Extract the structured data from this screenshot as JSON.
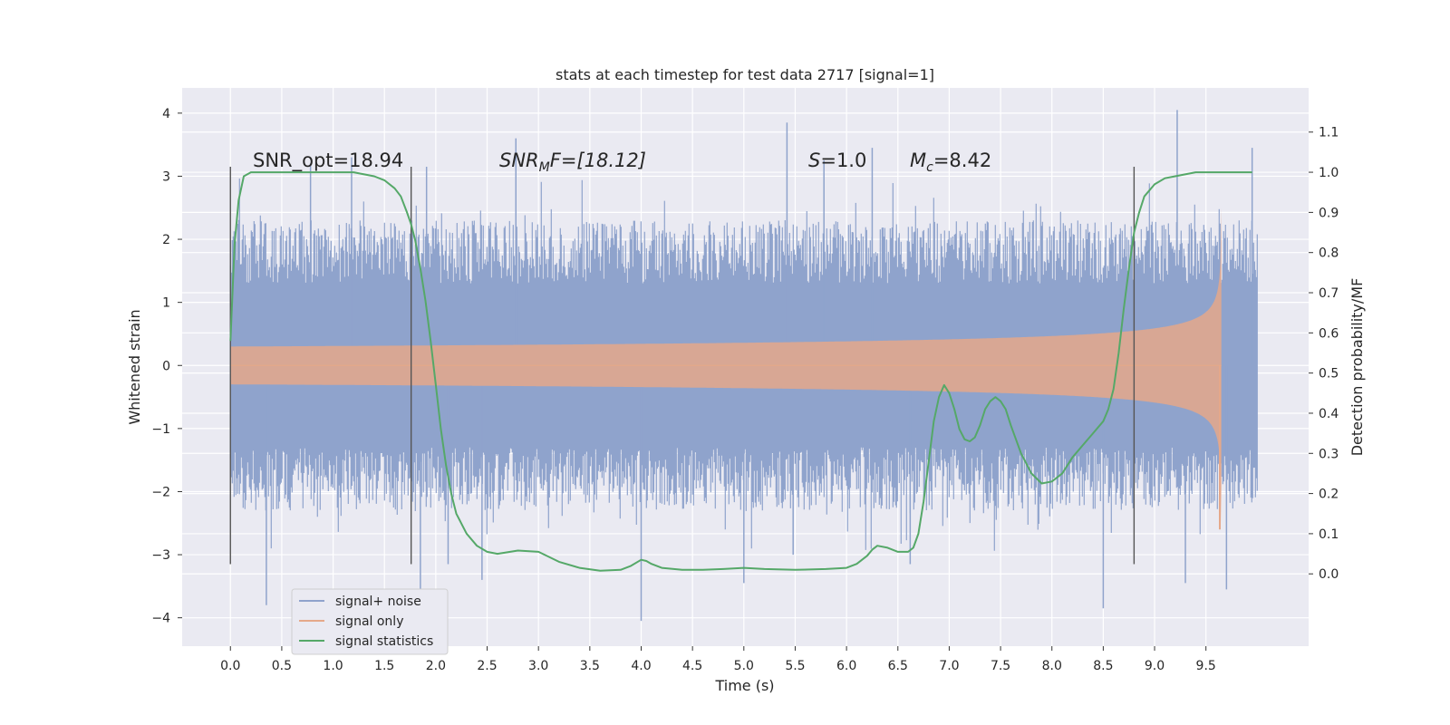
{
  "chart_data": {
    "type": "line",
    "title": "stats at each timestep for test data 2717 [signal=1]",
    "xlabel": "Time (s)",
    "ylabel": "Whitened strain",
    "y2label": "Detection probability/MF",
    "xlim": [
      -0.47,
      10.5
    ],
    "ylim": [
      -4.45,
      4.4
    ],
    "y2lim": [
      -0.18,
      1.21
    ],
    "x_ticks": [
      "0.0",
      "0.5",
      "1.0",
      "1.5",
      "2.0",
      "2.5",
      "3.0",
      "3.5",
      "4.0",
      "4.5",
      "5.0",
      "5.5",
      "6.0",
      "6.5",
      "7.0",
      "7.5",
      "8.0",
      "8.5",
      "9.0",
      "9.5"
    ],
    "y_ticks": [
      "4",
      "3",
      "2",
      "1",
      "0",
      "−1",
      "−2",
      "−3",
      "−4"
    ],
    "y2_ticks": [
      "1.1",
      "1.0",
      "0.9",
      "0.8",
      "0.7",
      "0.6",
      "0.5",
      "0.4",
      "0.3",
      "0.2",
      "0.1",
      "0.0"
    ],
    "grid": true,
    "legend_position": "bottom-left",
    "annotations": {
      "snr_opt": "SNR_opt=18.94",
      "snr_mf_main": "SNR",
      "snr_mf_sub": "M",
      "snr_mf_rest": "F=[18.12]",
      "s_main": "S",
      "s_rest": "=1.0",
      "mc_main": "M",
      "mc_sub": "c",
      "mc_rest": "=8.42"
    },
    "vlines": [
      0.0,
      1.76,
      8.8
    ],
    "vline_range": [
      -3.15,
      3.15
    ],
    "series": [
      {
        "name": "signal+ noise",
        "color": "#8fa3cc",
        "x_range": [
          0.0,
          10.0
        ],
        "band_core": 1.3,
        "band_typical": 2.3,
        "peaks": [
          {
            "x": 0.35,
            "y": -3.8
          },
          {
            "x": 0.78,
            "y": 3.2
          },
          {
            "x": 1.18,
            "y": 3.3
          },
          {
            "x": 1.85,
            "y": -3.55
          },
          {
            "x": 1.91,
            "y": 3.15
          },
          {
            "x": 2.12,
            "y": -3.15
          },
          {
            "x": 2.45,
            "y": -3.4
          },
          {
            "x": 2.78,
            "y": 3.6
          },
          {
            "x": 4.0,
            "y": -4.05
          },
          {
            "x": 5.0,
            "y": -3.45
          },
          {
            "x": 5.42,
            "y": 3.85
          },
          {
            "x": 5.48,
            "y": -3.0
          },
          {
            "x": 5.78,
            "y": 3.25
          },
          {
            "x": 6.25,
            "y": 3.45
          },
          {
            "x": 6.62,
            "y": -3.15
          },
          {
            "x": 8.5,
            "y": -3.85
          },
          {
            "x": 9.22,
            "y": 4.05
          },
          {
            "x": 9.3,
            "y": -3.45
          },
          {
            "x": 9.7,
            "y": -3.55
          },
          {
            "x": 9.95,
            "y": 3.45
          }
        ]
      },
      {
        "name": "signal only",
        "color": "#e5a88a",
        "chirp_end": 9.65,
        "amplitude_end": 2.5
      },
      {
        "name": "signal statistics",
        "color": "#55a868",
        "axis": "right",
        "x": [
          0.0,
          0.04,
          0.08,
          0.13,
          0.2,
          0.3,
          0.5,
          1.0,
          1.2,
          1.4,
          1.5,
          1.6,
          1.66,
          1.72,
          1.76,
          1.8,
          1.85,
          1.9,
          1.95,
          2.0,
          2.05,
          2.1,
          2.15,
          2.2,
          2.3,
          2.4,
          2.5,
          2.6,
          2.8,
          3.0,
          3.2,
          3.4,
          3.6,
          3.8,
          3.9,
          4.0,
          4.05,
          4.1,
          4.2,
          4.4,
          4.6,
          4.8,
          5.0,
          5.2,
          5.5,
          5.8,
          6.0,
          6.1,
          6.2,
          6.25,
          6.3,
          6.4,
          6.5,
          6.6,
          6.65,
          6.7,
          6.75,
          6.8,
          6.85,
          6.9,
          6.95,
          7.0,
          7.05,
          7.1,
          7.15,
          7.2,
          7.25,
          7.3,
          7.35,
          7.4,
          7.45,
          7.5,
          7.55,
          7.6,
          7.7,
          7.8,
          7.9,
          8.0,
          8.1,
          8.2,
          8.3,
          8.4,
          8.5,
          8.55,
          8.6,
          8.65,
          8.7,
          8.75,
          8.8,
          8.85,
          8.9,
          9.0,
          9.1,
          9.2,
          9.4,
          9.6,
          9.8,
          9.95
        ],
        "values": [
          0.58,
          0.82,
          0.93,
          0.99,
          1.0,
          1.0,
          1.0,
          1.0,
          1.0,
          0.99,
          0.98,
          0.96,
          0.94,
          0.9,
          0.87,
          0.83,
          0.76,
          0.68,
          0.58,
          0.47,
          0.36,
          0.27,
          0.2,
          0.15,
          0.1,
          0.07,
          0.055,
          0.05,
          0.058,
          0.055,
          0.03,
          0.015,
          0.008,
          0.01,
          0.02,
          0.035,
          0.032,
          0.025,
          0.015,
          0.01,
          0.01,
          0.012,
          0.015,
          0.012,
          0.01,
          0.012,
          0.015,
          0.025,
          0.045,
          0.06,
          0.07,
          0.065,
          0.055,
          0.055,
          0.065,
          0.1,
          0.18,
          0.28,
          0.38,
          0.44,
          0.47,
          0.45,
          0.41,
          0.36,
          0.335,
          0.33,
          0.34,
          0.37,
          0.41,
          0.43,
          0.44,
          0.43,
          0.41,
          0.37,
          0.3,
          0.25,
          0.225,
          0.23,
          0.25,
          0.29,
          0.32,
          0.35,
          0.38,
          0.41,
          0.46,
          0.55,
          0.66,
          0.76,
          0.85,
          0.9,
          0.94,
          0.97,
          0.985,
          0.99,
          1.0,
          1.0,
          1.0,
          1.0
        ]
      }
    ]
  }
}
